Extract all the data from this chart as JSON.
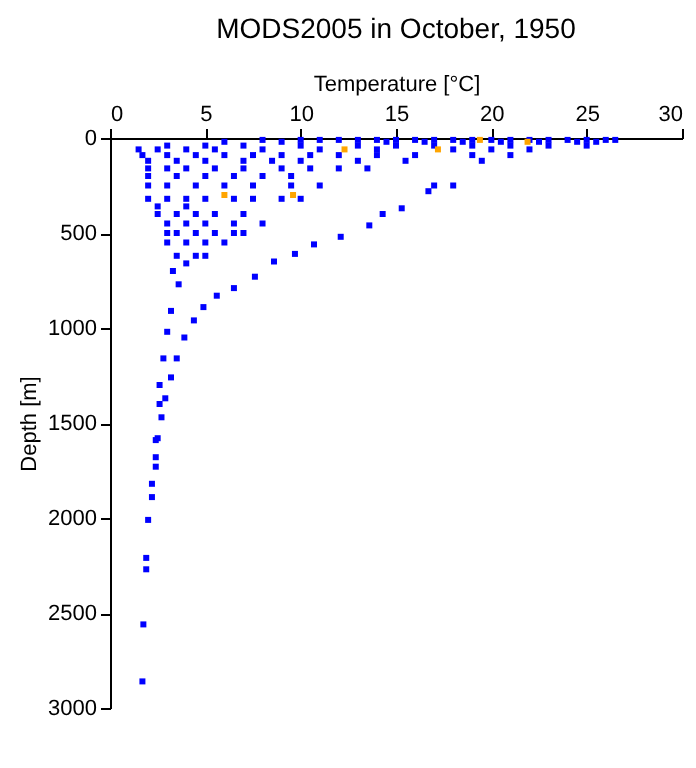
{
  "chart_data": {
    "type": "scatter",
    "title": "MODS2005 in October, 1950",
    "xlabel": "Temperature [°C]",
    "ylabel": "Depth [m]",
    "xlim": [
      0,
      30
    ],
    "xticks": [
      0,
      5,
      10,
      15,
      20,
      25,
      30
    ],
    "ylim": [
      3000,
      0
    ],
    "yticks": [
      0,
      500,
      1000,
      1500,
      2000,
      2500,
      3000
    ],
    "grid": false,
    "legend": false,
    "marker": "square",
    "series": [
      {
        "color": "#0000ff",
        "x": [
          8,
          10,
          11,
          12,
          13,
          14,
          15,
          16,
          17,
          18,
          19,
          20,
          21,
          22,
          23,
          24,
          25,
          26,
          26.5,
          6,
          9,
          14.5,
          16.5,
          18.5,
          20.5,
          22.5,
          24.5,
          25.5,
          3,
          5,
          7,
          10,
          13,
          15,
          17,
          19,
          21,
          23,
          25,
          1.5,
          2.5,
          4,
          5.5,
          8,
          11,
          14,
          18,
          20,
          22,
          1.7,
          3,
          4.5,
          6,
          7.5,
          9,
          10.5,
          12,
          14,
          16,
          19,
          21,
          2,
          3.5,
          5,
          7,
          8.5,
          10,
          13,
          15.5,
          19.5,
          2,
          3,
          4,
          5.5,
          7,
          9,
          10.5,
          12,
          13.5,
          2,
          3.5,
          5,
          6.5,
          8,
          9.5,
          2,
          3,
          4.5,
          6,
          7.5,
          9.5,
          11,
          17,
          18,
          2,
          3,
          4,
          5,
          6.5,
          7.5,
          9,
          10,
          2.5,
          4,
          2.5,
          3.5,
          4.5,
          5.5,
          7,
          3,
          4,
          5,
          6.5,
          8,
          3,
          3.5,
          4.5,
          5.5,
          6.5,
          7,
          3,
          4,
          5,
          6,
          3.5,
          4.5,
          5,
          4,
          16.7,
          15.3,
          14.3,
          13.6,
          12.1,
          10.7,
          9.7,
          8.6,
          7.6,
          6.5,
          5.6,
          4.9,
          4.4,
          3.9,
          3.5,
          3.2,
          2.9,
          2.7,
          2.5,
          2.4,
          3.3,
          3.6,
          3.2,
          3,
          2.8,
          2.6,
          2.6,
          2.4,
          2.4,
          2.2,
          2.2,
          2,
          1.9,
          1.9,
          1.75,
          1.7
        ],
        "values": [
          10,
          10,
          10,
          10,
          10,
          10,
          10,
          10,
          10,
          10,
          10,
          10,
          10,
          10,
          10,
          10,
          10,
          10,
          10,
          20,
          20,
          20,
          20,
          20,
          20,
          20,
          20,
          20,
          40,
          40,
          40,
          40,
          40,
          40,
          40,
          40,
          40,
          40,
          40,
          60,
          60,
          60,
          60,
          60,
          60,
          60,
          60,
          60,
          60,
          90,
          90,
          90,
          90,
          90,
          90,
          90,
          90,
          90,
          90,
          90,
          90,
          120,
          120,
          120,
          120,
          120,
          120,
          120,
          120,
          120,
          160,
          160,
          160,
          160,
          160,
          160,
          160,
          160,
          160,
          200,
          200,
          200,
          200,
          200,
          200,
          250,
          250,
          250,
          250,
          250,
          250,
          250,
          250,
          250,
          320,
          320,
          320,
          320,
          320,
          320,
          320,
          320,
          360,
          360,
          400,
          400,
          400,
          400,
          400,
          450,
          450,
          450,
          450,
          450,
          500,
          500,
          500,
          500,
          500,
          500,
          550,
          550,
          550,
          550,
          620,
          620,
          620,
          660,
          280,
          370,
          400,
          460,
          520,
          560,
          610,
          650,
          730,
          790,
          830,
          890,
          960,
          1050,
          1160,
          1260,
          1370,
          1470,
          1580,
          1680,
          700,
          770,
          910,
          1020,
          1160,
          1300,
          1400,
          1590,
          1730,
          1820,
          1890,
          2010,
          2210,
          2270,
          2560,
          2860
        ]
      },
      {
        "color": "#ffa500",
        "x": [
          12.3,
          17.2,
          19.4,
          21.9,
          6,
          9.6
        ],
        "values": [
          60,
          60,
          10,
          20,
          300,
          300
        ]
      }
    ]
  }
}
